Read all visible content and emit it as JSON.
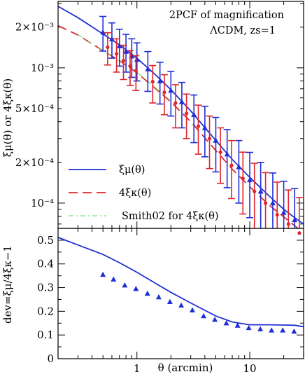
{
  "chart_data": [
    {
      "type": "line",
      "scale": {
        "x": "log",
        "y": "log"
      },
      "xlim": [
        0.2,
        30
      ],
      "ylim": [
        6.5e-05,
        0.0031
      ],
      "ylabel": "ξμ(θ) or 4ξκ(θ)",
      "annotations": [
        "2PCF of magnification",
        "ΛCDM, zs=1"
      ],
      "yticks": [
        {
          "value": 0.002,
          "label": "2×10⁻³"
        },
        {
          "value": 0.001,
          "label": "10⁻³"
        },
        {
          "value": 0.0005,
          "label": "5×10⁻⁴"
        },
        {
          "value": 0.0002,
          "label": "2×10⁻⁴"
        },
        {
          "value": 0.0001,
          "label": "10⁻⁴"
        }
      ],
      "legend": {
        "position": "bottom-left",
        "entries": [
          {
            "label": "ξμ(θ)",
            "style": "solid",
            "color": "#1f2fd6"
          },
          {
            "label": "4ξκ(θ)",
            "style": "dashed",
            "color": "#e0262b"
          },
          {
            "label": "Smith02 for 4ξκ(θ)",
            "style": "dash-dot",
            "color": "#7ee07e"
          }
        ]
      },
      "series": [
        {
          "name": "ξμ(θ)",
          "color": "#1f2fd6",
          "style": "solid",
          "x": [
            0.2,
            0.3,
            0.5,
            0.7,
            1.0,
            1.5,
            2.0,
            3.0,
            5.0,
            7.0,
            10.0,
            15.0,
            20.0,
            25.0,
            30.0
          ],
          "y": [
            0.00285,
            0.00235,
            0.00178,
            0.00148,
            0.00118,
            0.00087,
            0.00069,
            0.00048,
            0.00029,
            0.00021,
            0.000155,
            0.000112,
            9e-05,
            7.8e-05,
            7e-05
          ]
        },
        {
          "name": "4ξκ(θ)",
          "color": "#e0262b",
          "style": "dashed",
          "x": [
            0.2,
            0.3,
            0.5,
            0.7,
            1.0,
            1.5,
            2.0,
            3.0,
            5.0,
            7.0,
            10.0,
            15.0,
            20.0,
            25.0,
            30.0
          ],
          "y": [
            0.00205,
            0.00175,
            0.00134,
            0.00113,
            0.00092,
            0.00069,
            0.00056,
            0.0004,
            0.000245,
            0.000178,
            0.000132,
            9.6e-05,
            7.9e-05,
            6.8e-05,
            6e-05
          ]
        },
        {
          "name": "Smith02 for 4ξκ(θ)",
          "color": "#7ee07e",
          "style": "dash-dot",
          "x": [
            0.3,
            0.5,
            0.7,
            1.0,
            1.5,
            2.0
          ],
          "y": [
            0.00176,
            0.00135,
            0.00114,
            0.00093,
            0.0007,
            0.00057
          ]
        },
        {
          "name": "ξμ points",
          "color": "#1f2fd6",
          "marker": "triangle",
          "points": [
            {
              "x": 0.5,
              "y": 0.00183,
              "lo": 0.00133,
              "hi": 0.0024
            },
            {
              "x": 0.6,
              "y": 0.00163,
              "lo": 0.00118,
              "hi": 0.00215
            },
            {
              "x": 0.7,
              "y": 0.00145,
              "lo": 0.00103,
              "hi": 0.00193
            },
            {
              "x": 0.8,
              "y": 0.00132,
              "lo": 0.00093,
              "hi": 0.00177
            },
            {
              "x": 0.9,
              "y": 0.00122,
              "lo": 0.00085,
              "hi": 0.00164
            },
            {
              "x": 1.0,
              "y": 0.00115,
              "lo": 0.0008,
              "hi": 0.00153
            },
            {
              "x": 1.25,
              "y": 0.00098,
              "lo": 0.00067,
              "hi": 0.00132
            },
            {
              "x": 1.6,
              "y": 0.0008,
              "lo": 0.00054,
              "hi": 0.0011
            },
            {
              "x": 2.0,
              "y": 0.00068,
              "lo": 0.00044,
              "hi": 0.00094
            },
            {
              "x": 2.5,
              "y": 0.00056,
              "lo": 0.00036,
              "hi": 0.00078
            },
            {
              "x": 3.2,
              "y": 0.00045,
              "lo": 0.00028,
              "hi": 0.00063
            },
            {
              "x": 4.0,
              "y": 0.00036,
              "lo": 0.00022,
              "hi": 0.00052
            },
            {
              "x": 5.0,
              "y": 0.00029,
              "lo": 0.00017,
              "hi": 0.00043
            },
            {
              "x": 6.3,
              "y": 0.00023,
              "lo": 0.00013,
              "hi": 0.00035
            },
            {
              "x": 8.0,
              "y": 0.000185,
              "lo": 0.0001,
              "hi": 0.00029
            },
            {
              "x": 10.0,
              "y": 0.000148,
              "lo": 7.8e-05,
              "hi": 0.000237
            },
            {
              "x": 12.5,
              "y": 0.000122,
              "lo": 6.2e-05,
              "hi": 0.0002
            },
            {
              "x": 16.0,
              "y": 0.0001,
              "lo": 4.5e-05,
              "hi": 0.000167
            },
            {
              "x": 20.0,
              "y": 8.5e-05,
              "lo": 3.5e-05,
              "hi": 0.000145
            },
            {
              "x": 25.0,
              "y": 7.5e-05,
              "lo": 2.8e-05,
              "hi": 0.000128
            }
          ]
        },
        {
          "name": "4ξκ points",
          "color": "#e0262b",
          "marker": "dot",
          "points": [
            {
              "x": 0.55,
              "y": 0.00142,
              "lo": 0.00105,
              "hi": 0.00182
            },
            {
              "x": 0.66,
              "y": 0.00127,
              "lo": 0.00093,
              "hi": 0.00164
            },
            {
              "x": 0.76,
              "y": 0.00113,
              "lo": 0.00082,
              "hi": 0.00147
            },
            {
              "x": 0.87,
              "y": 0.00103,
              "lo": 0.00074,
              "hi": 0.00134
            },
            {
              "x": 0.98,
              "y": 0.00095,
              "lo": 0.00068,
              "hi": 0.00123
            },
            {
              "x": 1.38,
              "y": 0.00079,
              "lo": 0.00055,
              "hi": 0.00104
            },
            {
              "x": 1.75,
              "y": 0.00066,
              "lo": 0.00045,
              "hi": 0.00089
            },
            {
              "x": 2.2,
              "y": 0.00055,
              "lo": 0.00036,
              "hi": 0.00075
            },
            {
              "x": 2.75,
              "y": 0.00046,
              "lo": 0.0003,
              "hi": 0.00064
            },
            {
              "x": 3.5,
              "y": 0.00037,
              "lo": 0.00023,
              "hi": 0.00053
            },
            {
              "x": 4.4,
              "y": 0.0003,
              "lo": 0.00018,
              "hi": 0.00044
            },
            {
              "x": 5.5,
              "y": 0.000238,
              "lo": 0.00014,
              "hi": 0.00036
            },
            {
              "x": 6.9,
              "y": 0.00019,
              "lo": 0.000108,
              "hi": 0.00029
            },
            {
              "x": 8.7,
              "y": 0.000152,
              "lo": 8.3e-05,
              "hi": 0.000238
            },
            {
              "x": 11.0,
              "y": 0.000122,
              "lo": 6.3e-05,
              "hi": 0.000197
            },
            {
              "x": 13.8,
              "y": 0.0001,
              "lo": 4.8e-05,
              "hi": 0.000168
            },
            {
              "x": 17.5,
              "y": 8.2e-05,
              "lo": 3.6e-05,
              "hi": 0.000143
            },
            {
              "x": 22.0,
              "y": 7e-05,
              "lo": 2.8e-05,
              "hi": 0.000125
            },
            {
              "x": 27.5,
              "y": 6e-05,
              "lo": 2.2e-05,
              "hi": 0.00011
            }
          ]
        }
      ]
    },
    {
      "type": "line",
      "scale": {
        "x": "log",
        "y": "linear"
      },
      "xlim": [
        0.2,
        30
      ],
      "ylim": [
        0,
        0.55
      ],
      "xlabel": "θ (arcmin)",
      "ylabel": "dev=ξμ/4ξκ−1",
      "xticks": [
        {
          "value": 1,
          "label": "1"
        },
        {
          "value": 10,
          "label": "10"
        }
      ],
      "yticks": [
        {
          "value": 0,
          "label": "0"
        },
        {
          "value": 0.1,
          "label": "0.1"
        },
        {
          "value": 0.2,
          "label": "0.2"
        },
        {
          "value": 0.3,
          "label": "0.3"
        },
        {
          "value": 0.4,
          "label": "0.4"
        },
        {
          "value": 0.5,
          "label": "0.5"
        }
      ],
      "series": [
        {
          "name": "dev curve",
          "color": "#1f2fd6",
          "style": "solid",
          "x": [
            0.2,
            0.3,
            0.5,
            0.7,
            1.0,
            1.5,
            2.0,
            3.0,
            5.0,
            7.0,
            10.0,
            15.0,
            20.0,
            25.0,
            30.0
          ],
          "y": [
            0.512,
            0.48,
            0.44,
            0.405,
            0.365,
            0.315,
            0.28,
            0.235,
            0.18,
            0.155,
            0.143,
            0.143,
            0.142,
            0.141,
            0.135
          ]
        },
        {
          "name": "dev points",
          "color": "#1f2fd6",
          "marker": "triangle",
          "x": [
            0.5,
            0.62,
            0.78,
            0.98,
            1.24,
            1.56,
            1.96,
            2.47,
            3.1,
            3.9,
            4.9,
            6.2,
            7.8,
            9.8,
            12.4,
            15.6,
            19.6,
            24.7
          ],
          "y": [
            0.355,
            0.335,
            0.31,
            0.295,
            0.275,
            0.26,
            0.24,
            0.225,
            0.205,
            0.18,
            0.165,
            0.15,
            0.14,
            0.13,
            0.125,
            0.12,
            0.12,
            0.115
          ]
        }
      ]
    }
  ]
}
